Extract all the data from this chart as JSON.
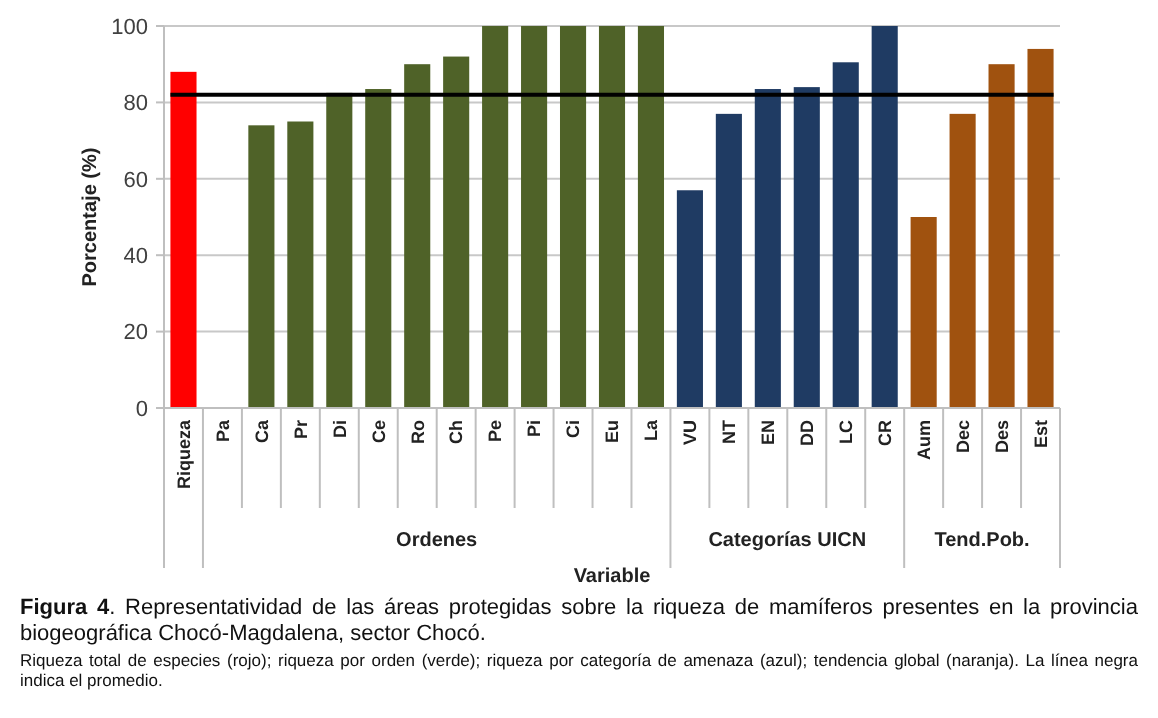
{
  "chart_data": {
    "type": "bar",
    "xlabel": "Variable",
    "ylabel": "Porcentaje (%)",
    "categories": [
      "Riqueza",
      "Pa",
      "Ca",
      "Pr",
      "Di",
      "Ce",
      "Ro",
      "Ch",
      "Pe",
      "Pi",
      "Ci",
      "Eu",
      "La",
      "VU",
      "NT",
      "EN",
      "DD",
      "LC",
      "CR",
      "Aum",
      "Dec",
      "Des",
      "Est"
    ],
    "series": [
      {
        "color": "#ff0000",
        "values": [
          88,
          null,
          null,
          null,
          null,
          null,
          null,
          null,
          null,
          null,
          null,
          null,
          null,
          null,
          null,
          null,
          null,
          null,
          null,
          null,
          null,
          null,
          null
        ]
      },
      {
        "color": "#4f6228",
        "values": [
          null,
          0,
          74,
          75,
          82.5,
          83.5,
          90,
          92,
          100,
          100,
          100,
          100,
          100,
          null,
          null,
          null,
          null,
          null,
          null,
          null,
          null,
          null,
          null
        ]
      },
      {
        "color": "#1f3b63",
        "values": [
          null,
          null,
          null,
          null,
          null,
          null,
          null,
          null,
          null,
          null,
          null,
          null,
          null,
          57,
          77,
          83.5,
          84,
          90.5,
          100,
          null,
          null,
          null,
          null
        ]
      },
      {
        "color": "#a0520f",
        "values": [
          null,
          null,
          null,
          null,
          null,
          null,
          null,
          null,
          null,
          null,
          null,
          null,
          null,
          null,
          null,
          null,
          null,
          null,
          null,
          50,
          77,
          90,
          94
        ]
      }
    ],
    "ylim": [
      0,
      100
    ],
    "yticks": [
      0,
      20,
      40,
      60,
      80,
      100
    ],
    "grid": "y",
    "ref_lines": [
      {
        "axis": "y",
        "value": 82,
        "color": "#000000"
      }
    ],
    "annotations": [
      "Ordenes",
      "Categorías UICN",
      "Tend.Pob.",
      "Figura 4. Representatividad de las áreas protegidas sobre la riqueza de mamíferos presentes en la provincia biogeográfica Chocó-Magdalena, sector Chocó.",
      "Riqueza total de especies (rojo); riqueza por orden (verde); riqueza por categoría de amenaza (azul); tendencia global (naranja). La línea negra indica el promedio."
    ]
  }
}
